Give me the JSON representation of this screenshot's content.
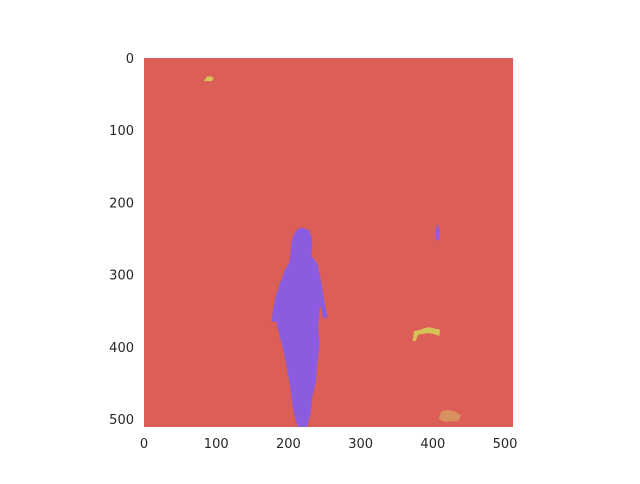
{
  "chart_data": {
    "type": "heatmap",
    "title": "",
    "xlabel": "",
    "ylabel": "",
    "xlim": [
      0,
      511
    ],
    "ylim": [
      511,
      0
    ],
    "grid": false,
    "x_ticks": [
      0,
      100,
      200,
      300,
      400,
      500
    ],
    "y_ticks": [
      0,
      100,
      200,
      300,
      400,
      500
    ],
    "background_color": "#db5f57",
    "regions": [
      {
        "color": "#8b5be0",
        "description": "standing person silhouette",
        "polygon": [
          [
            213,
            511
          ],
          [
            207,
            490
          ],
          [
            203,
            460
          ],
          [
            198,
            430
          ],
          [
            193,
            405
          ],
          [
            188,
            385
          ],
          [
            183,
            365
          ],
          [
            177,
            365
          ],
          [
            179,
            345
          ],
          [
            183,
            328
          ],
          [
            190,
            308
          ],
          [
            195,
            294
          ],
          [
            201,
            284
          ],
          [
            203,
            270
          ],
          [
            204,
            255
          ],
          [
            208,
            243
          ],
          [
            214,
            236
          ],
          [
            220,
            235
          ],
          [
            228,
            238
          ],
          [
            232,
            247
          ],
          [
            233,
            261
          ],
          [
            232,
            274
          ],
          [
            240,
            285
          ],
          [
            244,
            302
          ],
          [
            247,
            320
          ],
          [
            251,
            343
          ],
          [
            254,
            358
          ],
          [
            249,
            362
          ],
          [
            244,
            343
          ],
          [
            241,
            371
          ],
          [
            243,
            397
          ],
          [
            240,
            422
          ],
          [
            238,
            448
          ],
          [
            233,
            470
          ],
          [
            231,
            490
          ],
          [
            226,
            511
          ]
        ]
      },
      {
        "color": "#8b5be0",
        "description": "small vertical mark",
        "polygon": [
          [
            405,
            232
          ],
          [
            407,
            231
          ],
          [
            409,
            240
          ],
          [
            408,
            253
          ],
          [
            405,
            252
          ],
          [
            404,
            240
          ]
        ]
      },
      {
        "color": "#d6c357",
        "description": "small yellow blob upper-left",
        "polygon": [
          [
            83,
            32
          ],
          [
            87,
            26
          ],
          [
            92,
            25
          ],
          [
            97,
            28
          ],
          [
            94,
            32
          ]
        ]
      },
      {
        "color": "#d6c357",
        "description": "yellow blobs lower-right",
        "polygon": [
          [
            372,
            392
          ],
          [
            374,
            378
          ],
          [
            381,
            377
          ],
          [
            388,
            374
          ],
          [
            395,
            373
          ],
          [
            404,
            375
          ],
          [
            410,
            376
          ],
          [
            409,
            385
          ],
          [
            400,
            382
          ],
          [
            392,
            381
          ],
          [
            380,
            383
          ],
          [
            376,
            392
          ]
        ]
      },
      {
        "color": "#d9925f",
        "description": "orange blob bottom-right",
        "polygon": [
          [
            408,
            500
          ],
          [
            412,
            489
          ],
          [
            422,
            487
          ],
          [
            431,
            490
          ],
          [
            439,
            495
          ],
          [
            435,
            503
          ],
          [
            425,
            503
          ],
          [
            417,
            504
          ]
        ]
      }
    ]
  }
}
